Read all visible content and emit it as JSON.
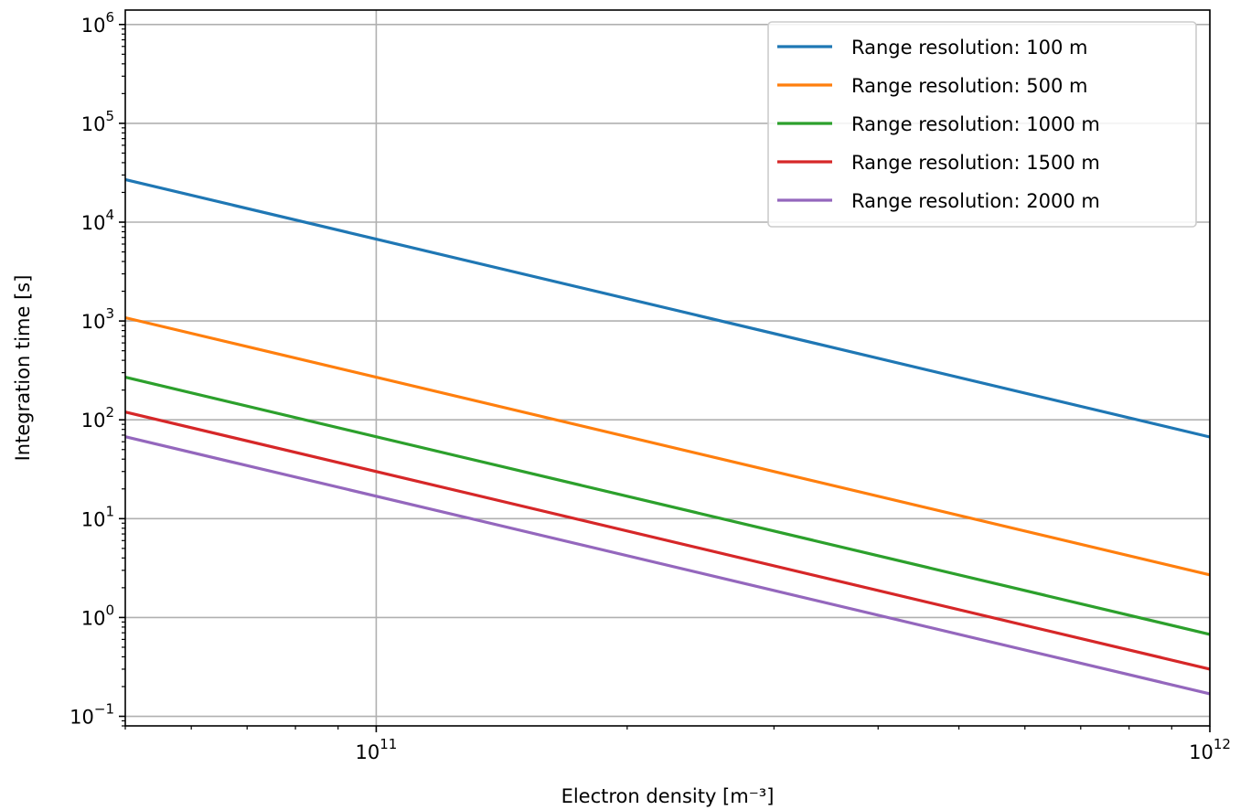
{
  "chart_data": {
    "type": "line",
    "title": "",
    "xlabel": "Electron density [m⁻³]",
    "ylabel": "Integration time [s]",
    "xscale": "log",
    "yscale": "log",
    "xlim": [
      50000000000.0,
      1000000000000.0
    ],
    "ylim": [
      0.08,
      1400000
    ],
    "grid": "major",
    "legend_position": "top-right",
    "x_ticks": [
      {
        "value": 100000000000.0,
        "base": "10",
        "exp": "11"
      },
      {
        "value": 1000000000000.0,
        "base": "10",
        "exp": "12"
      }
    ],
    "y_ticks": [
      {
        "value": 0.1,
        "base": "10",
        "exp": "−1"
      },
      {
        "value": 1,
        "base": "10",
        "exp": "0"
      },
      {
        "value": 10,
        "base": "10",
        "exp": "1"
      },
      {
        "value": 100,
        "base": "10",
        "exp": "2"
      },
      {
        "value": 1000,
        "base": "10",
        "exp": "3"
      },
      {
        "value": 10000,
        "base": "10",
        "exp": "4"
      },
      {
        "value": 100000,
        "base": "10",
        "exp": "5"
      },
      {
        "value": 1000000,
        "base": "10",
        "exp": "6"
      }
    ],
    "x": [
      50000000000.0,
      1000000000000.0
    ],
    "series": [
      {
        "name": "Range resolution: 100 m",
        "color": "#1f77b4",
        "values": [
          27000,
          67
        ]
      },
      {
        "name": "Range resolution: 500 m",
        "color": "#ff7f0e",
        "values": [
          1080,
          2.7
        ]
      },
      {
        "name": "Range resolution: 1000 m",
        "color": "#2ca02c",
        "values": [
          270,
          0.675
        ]
      },
      {
        "name": "Range resolution: 1500 m",
        "color": "#d62728",
        "values": [
          120,
          0.3
        ]
      },
      {
        "name": "Range resolution: 2000 m",
        "color": "#9467bd",
        "values": [
          67.5,
          0.169
        ]
      }
    ]
  }
}
